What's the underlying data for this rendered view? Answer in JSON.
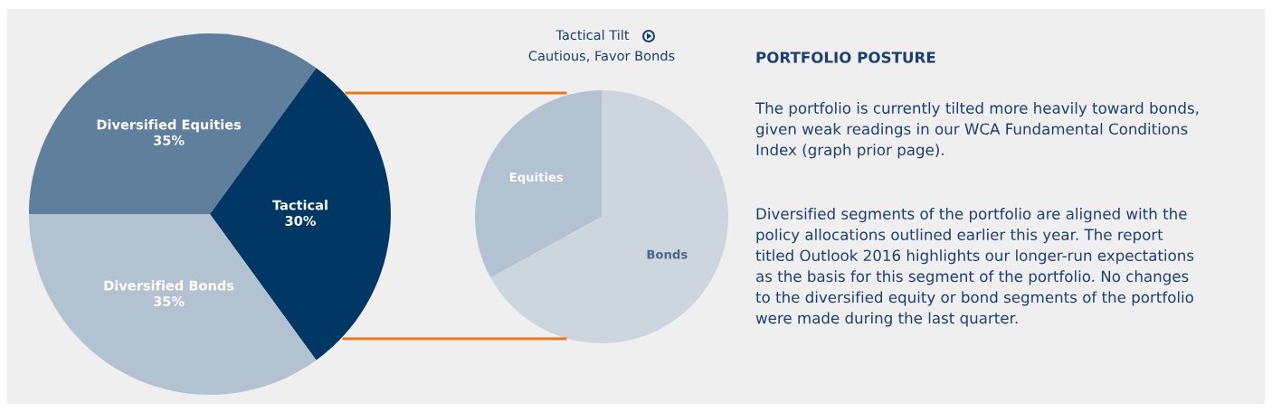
{
  "chart_data": [
    {
      "type": "pie",
      "categories": [
        "Diversified Equities",
        "Tactical",
        "Diversified Bonds"
      ],
      "values": [
        35,
        30,
        35
      ],
      "colors": [
        "#5f7f9c",
        "#003764",
        "#b3c2d1"
      ],
      "value_labels": [
        "35%",
        "30%",
        "35%"
      ]
    },
    {
      "type": "pie",
      "title": "Tactical Tilt",
      "subtitle": "Cautious, Favor Bonds",
      "categories": [
        "Equities",
        "Bonds"
      ],
      "values": [
        33,
        67
      ],
      "colors": [
        "#b3c2d1",
        "#cdd5de"
      ]
    },
    {
      "type": "other",
      "title": "PORTFOLIO POSTURE",
      "annotations": [
        "The portfolio is currently tilted more heavily toward bonds,\ngiven weak readings in our WCA Fundamental Conditions\nIndex (graph prior page).",
        "Diversified segments of the portfolio are aligned with the\npolicy allocations outlined earlier this year. The report\ntitled Outlook 2016 highlights our longer-run expectations\nas the basis for this segment of the portfolio. No changes\nto the diversified equity or bond segments of the portfolio\nwere made during the last quarter."
      ]
    }
  ]
}
